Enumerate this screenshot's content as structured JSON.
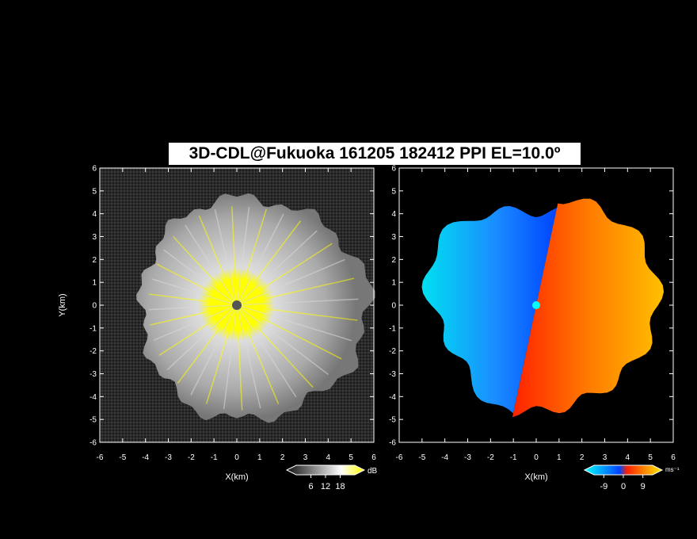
{
  "title": "3D-CDL@Fukuoka 161205 182412 PPI EL=10.0º",
  "chart_data": [
    {
      "type": "heatmap",
      "panel": "left",
      "product": "reflectivity",
      "xlabel": "X(km)",
      "ylabel": "Y(km)",
      "xlim": [
        -6,
        6
      ],
      "ylim": [
        -6,
        6
      ],
      "xticks": [
        "-6",
        "-5",
        "-4",
        "-3",
        "-2",
        "-1",
        "0",
        "1",
        "2",
        "3",
        "4",
        "5",
        "6"
      ],
      "yticks": [
        "-6",
        "-5",
        "-4",
        "-3",
        "-2",
        "-1",
        "0",
        "1",
        "2",
        "3",
        "4",
        "5",
        "6"
      ],
      "colorbar": {
        "unit": "dB",
        "ticks": [
          "6",
          "12",
          "18"
        ],
        "range": [
          0,
          24
        ],
        "colors": [
          "#111111",
          "#ffffff",
          "#ffff00"
        ]
      },
      "echo_radius_km": {
        "north": 4.7,
        "east": 5.8,
        "south": 5.0,
        "west": 4.2
      }
    },
    {
      "type": "heatmap",
      "panel": "right",
      "product": "radial velocity",
      "xlabel": "X(km)",
      "ylabel": "",
      "xlim": [
        -6,
        6
      ],
      "ylim": [
        -6,
        6
      ],
      "xticks": [
        "-6",
        "-5",
        "-4",
        "-3",
        "-2",
        "-1",
        "0",
        "1",
        "2",
        "3",
        "4",
        "5",
        "6"
      ],
      "yticks": [
        "-6",
        "-5",
        "-4",
        "-3",
        "-2",
        "-1",
        "0",
        "1",
        "2",
        "3",
        "4",
        "5",
        "6"
      ],
      "colorbar": {
        "unit": "ms⁻¹",
        "ticks": [
          "-9",
          "0",
          "9"
        ],
        "range": [
          -13.5,
          13.5
        ],
        "colors": [
          "#00ffff",
          "#0044ff",
          "#ff2200",
          "#ffee00"
        ]
      },
      "zero_line_azimuth_deg": 12
    }
  ]
}
